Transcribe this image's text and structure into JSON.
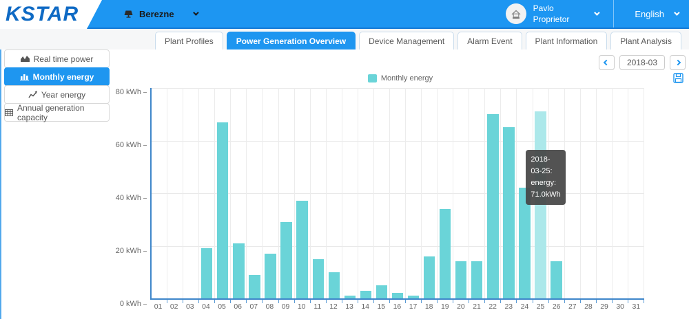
{
  "header": {
    "logo": "KSTAR",
    "plant_selector": {
      "name": "Berezne",
      "icon": "solar-panel-icon"
    },
    "user": {
      "name_line1": "Pavlo",
      "name_line2": "Proprietor",
      "avatar_icon": "house-icon"
    },
    "language": "English"
  },
  "tabs": [
    {
      "label": "Plant Profiles",
      "active": false
    },
    {
      "label": "Power Generation Overview",
      "active": true
    },
    {
      "label": "Device Management",
      "active": false
    },
    {
      "label": "Alarm Event",
      "active": false
    },
    {
      "label": "Plant Information",
      "active": false
    },
    {
      "label": "Plant Analysis",
      "active": false
    }
  ],
  "sidebar": {
    "items": [
      {
        "label": "Real time power",
        "icon": "area-chart-icon",
        "active": false
      },
      {
        "label": "Monthly energy",
        "icon": "bar-chart-icon",
        "active": true
      },
      {
        "label": "Year energy",
        "icon": "line-chart-icon",
        "active": false
      },
      {
        "label": "Annual generation capacity",
        "icon": "table-icon",
        "active": false
      }
    ]
  },
  "toolbar": {
    "month": "2018-03"
  },
  "tooltip": {
    "line1": "2018-03-25:",
    "line2": "energy:",
    "line3": "71.0kWh"
  },
  "chart_data": {
    "type": "bar",
    "title": "",
    "legend": [
      "Monthly energy"
    ],
    "legend_position": "top-center",
    "x": [
      "01",
      "02",
      "03",
      "04",
      "05",
      "06",
      "07",
      "08",
      "09",
      "10",
      "11",
      "12",
      "13",
      "14",
      "15",
      "16",
      "17",
      "18",
      "19",
      "20",
      "21",
      "22",
      "23",
      "24",
      "25",
      "26",
      "27",
      "28",
      "29",
      "30",
      "31"
    ],
    "values": [
      0,
      0,
      0,
      19,
      67,
      21,
      9,
      17,
      29,
      37,
      15,
      10,
      1,
      3,
      5,
      2,
      1,
      16,
      34,
      14,
      14,
      70,
      65,
      42,
      71,
      14,
      0,
      0,
      0,
      0,
      0
    ],
    "xlabel": "",
    "ylabel": "kWh",
    "ylim": [
      0,
      80
    ],
    "yticks": [
      0,
      20,
      40,
      60,
      80
    ],
    "grid": true,
    "highlighted_index": 24,
    "bar_color": "#6ad4d8",
    "highlight_color": "#ace8ea"
  },
  "colors": {
    "header_blue": "#1d96f2",
    "accent_blue": "#1e96f0",
    "logo_blue": "#0f6ac4",
    "axis_blue": "#3e86ca",
    "bar_teal": "#6ad4d8",
    "bar_highlight": "#ace8ea",
    "tooltip_bg": "#464646",
    "text_gray": "#666666"
  }
}
